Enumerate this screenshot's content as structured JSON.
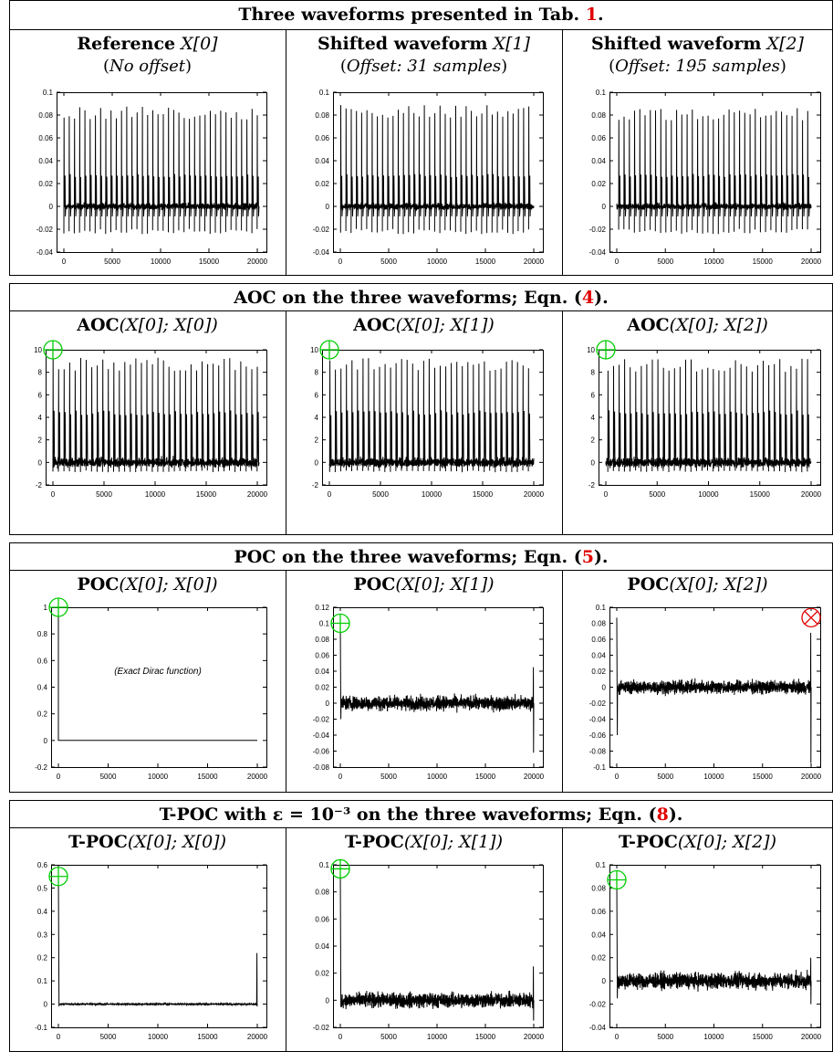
{
  "bands": [
    {
      "title_text": "Three waveforms presented in Tab. ",
      "title_ref": "1",
      "title_end": ".",
      "panels": [
        {
          "title_bold": "Reference",
          "title_math": "X[0]",
          "subtitle_open": "(",
          "subtitle_italic": "No offset",
          "subtitle_close": ")"
        },
        {
          "title_bold": "Shifted waveform",
          "title_math": "X[1]",
          "subtitle_open": "(",
          "subtitle_italic": "Offset: 31 samples",
          "subtitle_close": ")"
        },
        {
          "title_bold": "Shifted waveform",
          "title_math": "X[2]",
          "subtitle_open": "(",
          "subtitle_italic": "Offset: 195 samples",
          "subtitle_close": ")"
        }
      ]
    },
    {
      "title_text": "AOC on the three waveforms; Eqn. (",
      "title_ref": "4",
      "title_end": ").",
      "panels": [
        {
          "title_bold": "AOC",
          "title_math": "(X[0]; X[0])"
        },
        {
          "title_bold": "AOC",
          "title_math": "(X[0]; X[1])"
        },
        {
          "title_bold": "AOC",
          "title_math": "(X[0]; X[2])"
        }
      ]
    },
    {
      "title_text": "POC on the three waveforms; Eqn. (",
      "title_ref": "5",
      "title_end": ").",
      "panels": [
        {
          "title_bold": "POC",
          "title_math": "(X[0]; X[0])"
        },
        {
          "title_bold": "POC",
          "title_math": "(X[0]; X[1])"
        },
        {
          "title_bold": "POC",
          "title_math": "(X[0]; X[2])"
        }
      ]
    },
    {
      "title_text": "T-POC with ε = 10⁻³ on the three waveforms; Eqn. (",
      "title_ref": "8",
      "title_end": ").",
      "panels": [
        {
          "title_bold": "T-POC",
          "title_math": "(X[0]; X[0])"
        },
        {
          "title_bold": "T-POC",
          "title_math": "(X[0]; X[1])"
        },
        {
          "title_bold": "T-POC",
          "title_math": "(X[0]; X[2])"
        }
      ]
    }
  ],
  "colors": {
    "good_marker": "#00cc00",
    "bad_marker": "#e00000",
    "ref_link": "#e00000",
    "trace": "#000000"
  },
  "chart_data": [
    {
      "id": "wave0",
      "type": "line",
      "xlim": [
        0,
        20000
      ],
      "ylim": [
        -0.04,
        0.1
      ],
      "xticks": [
        "0",
        "5000",
        "10000",
        "15000",
        "20000"
      ],
      "yticks": [
        "-0.04",
        "-0.02",
        "0",
        "0.02",
        "0.04",
        "0.06",
        "0.08",
        "0.1"
      ],
      "pattern": "periodic_spikes",
      "period": 540,
      "offset": 0,
      "pos_peak": 0.082,
      "neg_peak": -0.022,
      "mid_peak": 0.027,
      "noise": 0.004
    },
    {
      "id": "wave1",
      "type": "line",
      "xlim": [
        0,
        20000
      ],
      "ylim": [
        -0.04,
        0.1
      ],
      "xticks": [
        "0",
        "5000",
        "10000",
        "15000",
        "20000"
      ],
      "yticks": [
        "-0.04",
        "-0.02",
        "0",
        "0.02",
        "0.04",
        "0.06",
        "0.08",
        "0.1"
      ],
      "pattern": "periodic_spikes",
      "period": 540,
      "offset": 31,
      "pos_peak": 0.083,
      "neg_peak": -0.022,
      "mid_peak": 0.027,
      "noise": 0.004
    },
    {
      "id": "wave2",
      "type": "line",
      "xlim": [
        0,
        20000
      ],
      "ylim": [
        -0.04,
        0.1
      ],
      "xticks": [
        "0",
        "5000",
        "10000",
        "15000",
        "20000"
      ],
      "yticks": [
        "-0.04",
        "-0.02",
        "0",
        "0.02",
        "0.04",
        "0.06",
        "0.08",
        "0.1"
      ],
      "pattern": "periodic_spikes",
      "period": 540,
      "offset": 195,
      "pos_peak": 0.081,
      "neg_peak": -0.022,
      "mid_peak": 0.027,
      "noise": 0.004
    },
    {
      "id": "aoc0",
      "type": "line",
      "xlim": [
        0,
        20000
      ],
      "ylim": [
        -2,
        10
      ],
      "xticks": [
        "0",
        "5000",
        "10000",
        "15000",
        "20000"
      ],
      "yticks": [
        "-2",
        "0",
        "2",
        "4",
        "6",
        "8",
        "10"
      ],
      "pattern": "periodic_spikes",
      "period": 540,
      "offset": 0,
      "pos_peak": 8.7,
      "neg_peak": -0.8,
      "mid_peak": 4.4,
      "noise": 0.6,
      "marker": {
        "type": "good",
        "x": 0,
        "y": 10
      }
    },
    {
      "id": "aoc1",
      "type": "line",
      "xlim": [
        0,
        20000
      ],
      "ylim": [
        -2,
        10
      ],
      "xticks": [
        "0",
        "5000",
        "10000",
        "15000",
        "20000"
      ],
      "yticks": [
        "-2",
        "0",
        "2",
        "4",
        "6",
        "8",
        "10"
      ],
      "pattern": "periodic_spikes",
      "period": 540,
      "offset": 31,
      "pos_peak": 8.7,
      "neg_peak": -0.8,
      "mid_peak": 4.4,
      "noise": 0.6,
      "marker": {
        "type": "good",
        "x": 0,
        "y": 10
      }
    },
    {
      "id": "aoc2",
      "type": "line",
      "xlim": [
        0,
        20000
      ],
      "ylim": [
        -2,
        10
      ],
      "xticks": [
        "0",
        "5000",
        "10000",
        "15000",
        "20000"
      ],
      "yticks": [
        "-2",
        "0",
        "2",
        "4",
        "6",
        "8",
        "10"
      ],
      "pattern": "periodic_spikes",
      "period": 540,
      "offset": 195,
      "pos_peak": 8.6,
      "neg_peak": -0.8,
      "mid_peak": 4.4,
      "noise": 0.6,
      "marker": {
        "type": "good",
        "x": 0,
        "y": 10
      }
    },
    {
      "id": "poc0",
      "type": "line",
      "xlim": [
        0,
        20000
      ],
      "ylim": [
        -0.2,
        1
      ],
      "xticks": [
        "0",
        "5000",
        "10000",
        "15000",
        "20000"
      ],
      "yticks": [
        "-0.2",
        "0",
        "0.2",
        "0.4",
        "0.6",
        "0.8",
        "1"
      ],
      "pattern": "dirac",
      "dirac_at": 0,
      "dirac_value": 1,
      "annotation": "(Exact Dirac function)",
      "annotation_at": [
        10000,
        0.5
      ],
      "marker": {
        "type": "good",
        "x": 0,
        "y": 1
      }
    },
    {
      "id": "poc1",
      "type": "line",
      "xlim": [
        0,
        20000
      ],
      "ylim": [
        -0.08,
        0.12
      ],
      "xticks": [
        "0",
        "5000",
        "10000",
        "15000",
        "20000"
      ],
      "yticks": [
        "-0.08",
        "-0.06",
        "-0.04",
        "-0.02",
        "0",
        "0.02",
        "0.04",
        "0.06",
        "0.08",
        "0.1",
        "0.12"
      ],
      "pattern": "noise",
      "noise": 0.013,
      "start_spike": 0.1,
      "start_dip": -0.02,
      "end_spike": 0.045,
      "end_dip": -0.062,
      "marker": {
        "type": "good",
        "x": 0,
        "y": 0.1
      }
    },
    {
      "id": "poc2",
      "type": "line",
      "xlim": [
        0,
        20000
      ],
      "ylim": [
        -0.1,
        0.1
      ],
      "xticks": [
        "0",
        "5000",
        "10000",
        "15000",
        "20000"
      ],
      "yticks": [
        "-0.1",
        "-0.08",
        "-0.06",
        "-0.04",
        "-0.02",
        "0",
        "0.02",
        "0.04",
        "0.06",
        "0.08",
        "0.1"
      ],
      "pattern": "noise",
      "noise": 0.012,
      "start_spike": 0.087,
      "start_dip": -0.06,
      "end_spike": 0.068,
      "end_dip": -0.095,
      "marker": {
        "type": "bad",
        "x": 20000,
        "y": 0.087
      }
    },
    {
      "id": "tpoc0",
      "type": "line",
      "xlim": [
        0,
        20000
      ],
      "ylim": [
        -0.1,
        0.6
      ],
      "xticks": [
        "0",
        "5000",
        "10000",
        "15000",
        "20000"
      ],
      "yticks": [
        "-0.1",
        "0",
        "0.1",
        "0.2",
        "0.3",
        "0.4",
        "0.5",
        "0.6"
      ],
      "pattern": "noise",
      "noise": 0.004,
      "start_spike": 0.55,
      "start_dip": -0.01,
      "end_spike": 0.22,
      "end_dip": -0.01,
      "marker": {
        "type": "good",
        "x": 0,
        "y": 0.55
      }
    },
    {
      "id": "tpoc1",
      "type": "line",
      "xlim": [
        0,
        20000
      ],
      "ylim": [
        -0.02,
        0.1
      ],
      "xticks": [
        "0",
        "5000",
        "10000",
        "15000",
        "20000"
      ],
      "yticks": [
        "-0.02",
        "0",
        "0.02",
        "0.04",
        "0.06",
        "0.08",
        "0.1"
      ],
      "pattern": "noise",
      "noise": 0.008,
      "start_spike": 0.097,
      "start_dip": -0.005,
      "end_spike": 0.025,
      "end_dip": -0.015,
      "marker": {
        "type": "good",
        "x": 0,
        "y": 0.097
      }
    },
    {
      "id": "tpoc2",
      "type": "line",
      "xlim": [
        0,
        20000
      ],
      "ylim": [
        -0.04,
        0.1
      ],
      "xticks": [
        "0",
        "5000",
        "10000",
        "15000",
        "20000"
      ],
      "yticks": [
        "-0.04",
        "-0.02",
        "0",
        "0.02",
        "0.04",
        "0.06",
        "0.08",
        "0.1"
      ],
      "pattern": "noise",
      "noise": 0.01,
      "start_spike": 0.087,
      "start_dip": -0.015,
      "end_spike": 0.02,
      "end_dip": -0.02,
      "marker": {
        "type": "good",
        "x": 0,
        "y": 0.087
      }
    }
  ]
}
